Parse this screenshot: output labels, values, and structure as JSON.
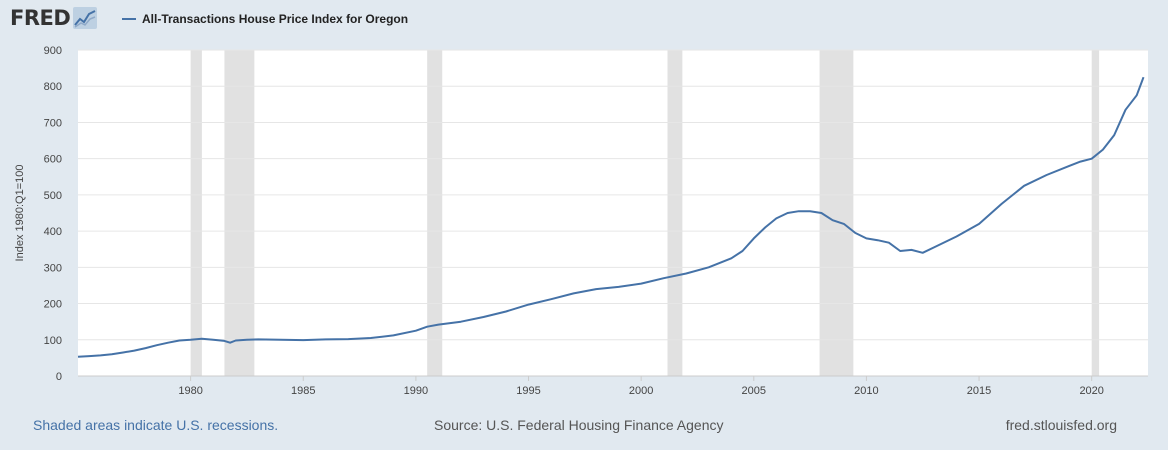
{
  "header": {
    "logo_text": "FRED",
    "logo_icon": "line-chart-icon",
    "legend_label": "All-Transactions House Price Index for Oregon"
  },
  "footer": {
    "recession_note": "Shaded areas indicate U.S. recessions.",
    "source": "Source: U.S. Federal Housing Finance Agency",
    "site": "fred.stlouisfed.org"
  },
  "colors": {
    "background": "#e1e9f0",
    "plot_background": "#ffffff",
    "series": "#4572a7",
    "recession": "#e1e1e1",
    "grid": "#e6e6e6"
  },
  "chart_data": {
    "type": "line",
    "title": "",
    "xlabel": "",
    "ylabel": "Index 1980:Q1=100",
    "xlim": [
      1975.0,
      2022.5
    ],
    "ylim": [
      0,
      900
    ],
    "grid": true,
    "x_ticks": [
      1980,
      1985,
      1990,
      1995,
      2000,
      2005,
      2010,
      2015,
      2020
    ],
    "y_ticks": [
      0,
      100,
      200,
      300,
      400,
      500,
      600,
      700,
      800,
      900
    ],
    "recessions": [
      [
        1980.0,
        1980.5
      ],
      [
        1981.5,
        1982.83
      ],
      [
        1990.5,
        1991.17
      ],
      [
        2001.17,
        2001.83
      ],
      [
        2007.92,
        2009.42
      ],
      [
        2020.0,
        2020.33
      ]
    ],
    "series": [
      {
        "name": "All-Transactions House Price Index for Oregon",
        "x": [
          1975.0,
          1975.5,
          1976.0,
          1976.5,
          1977.0,
          1977.5,
          1978.0,
          1978.5,
          1979.0,
          1979.5,
          1980.0,
          1980.5,
          1981.0,
          1981.5,
          1981.75,
          1982.0,
          1982.5,
          1983.0,
          1984.0,
          1985.0,
          1986.0,
          1987.0,
          1988.0,
          1989.0,
          1990.0,
          1990.5,
          1991.0,
          1992.0,
          1993.0,
          1994.0,
          1995.0,
          1996.0,
          1997.0,
          1998.0,
          1999.0,
          2000.0,
          2001.0,
          2002.0,
          2003.0,
          2004.0,
          2004.5,
          2005.0,
          2005.5,
          2006.0,
          2006.5,
          2007.0,
          2007.5,
          2008.0,
          2008.5,
          2009.0,
          2009.5,
          2010.0,
          2010.5,
          2011.0,
          2011.5,
          2012.0,
          2012.5,
          2013.0,
          2014.0,
          2015.0,
          2016.0,
          2017.0,
          2018.0,
          2019.0,
          2019.5,
          2020.0,
          2020.5,
          2021.0,
          2021.5,
          2022.0,
          2022.3
        ],
        "values": [
          53,
          55,
          57,
          60,
          65,
          70,
          77,
          85,
          92,
          98,
          100,
          103,
          100,
          97,
          92,
          98,
          100,
          101,
          100,
          99,
          101,
          102,
          105,
          112,
          125,
          136,
          142,
          150,
          163,
          178,
          197,
          212,
          228,
          240,
          246,
          255,
          270,
          283,
          300,
          325,
          345,
          380,
          410,
          435,
          450,
          455,
          455,
          450,
          430,
          420,
          395,
          380,
          375,
          368,
          345,
          348,
          340,
          355,
          385,
          420,
          475,
          525,
          555,
          580,
          592,
          600,
          625,
          665,
          735,
          775,
          825
        ]
      }
    ]
  }
}
